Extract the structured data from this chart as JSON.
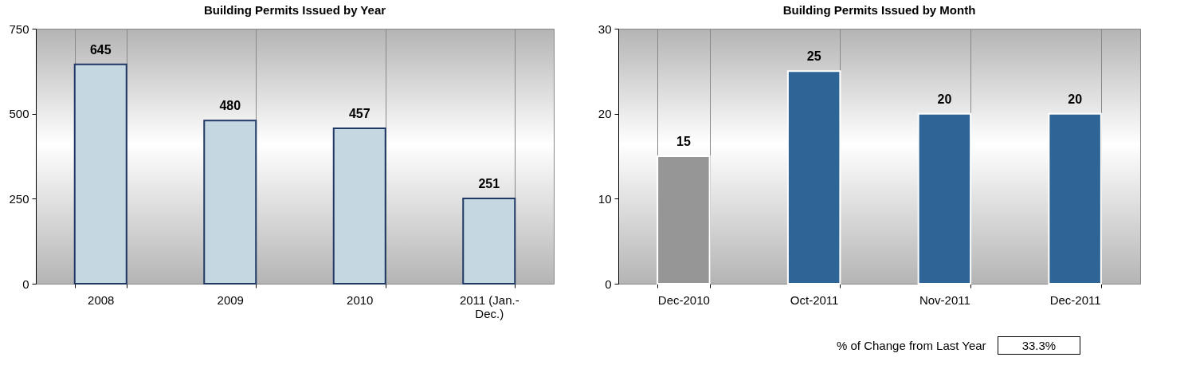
{
  "chart_data": [
    {
      "type": "bar",
      "title": "Building Permits Issued by Year",
      "categories": [
        "2008",
        "2009",
        "2010",
        "2011 (Jan.-Dec.)"
      ],
      "values": [
        645,
        480,
        457,
        251
      ],
      "color": "#c5d7e0",
      "ylim": [
        0,
        750
      ],
      "yticks": [
        0,
        250,
        500,
        750
      ],
      "grid": "x",
      "data_labels": true
    },
    {
      "type": "bar",
      "title": "Building Permits Issued by Month",
      "categories": [
        "Dec-2010",
        "Oct-2011",
        "Nov-2011",
        "Dec-2011"
      ],
      "values": [
        15,
        25,
        20,
        20
      ],
      "colors": [
        "#969696",
        "#2e6496",
        "#2e6496",
        "#2e6496"
      ],
      "ylim": [
        0,
        30
      ],
      "yticks": [
        0,
        10,
        20,
        30
      ],
      "grid": "x",
      "data_labels": true,
      "annotations": [
        "% of Change from Last Year",
        "33.3%"
      ]
    }
  ]
}
